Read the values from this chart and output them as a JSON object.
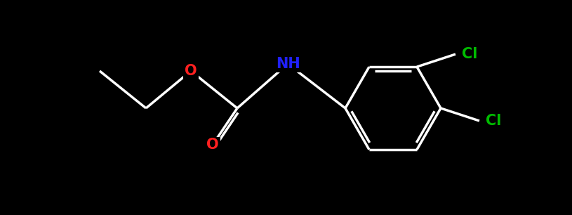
{
  "background_color": "#000000",
  "bond_color": "#ffffff",
  "bond_width": 2.5,
  "atom_colors": {
    "O": "#ff2020",
    "N": "#2020ff",
    "Cl": "#00bb00",
    "C": "#ffffff",
    "H": "#ffffff"
  },
  "figsize": [
    8.15,
    3.06
  ],
  "dpi": 100,
  "font_size": 15
}
